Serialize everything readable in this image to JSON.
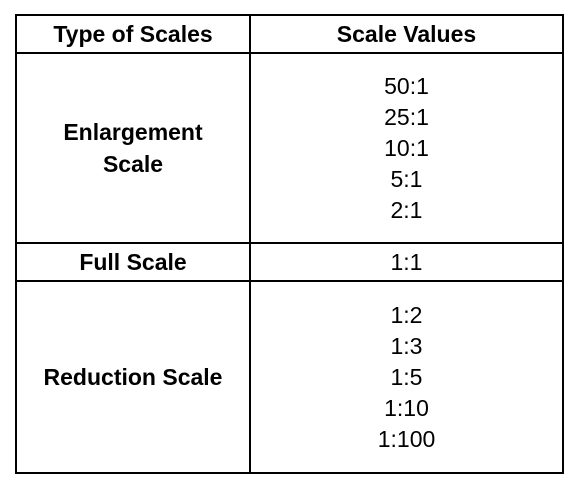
{
  "table": {
    "headers": {
      "type": "Type of Scales",
      "values": "Scale Values"
    },
    "rows": [
      {
        "type_lines": [
          "Enlargement",
          "Scale"
        ],
        "values": [
          "50:1",
          "25:1",
          "10:1",
          "5:1",
          "2:1"
        ]
      },
      {
        "type_lines": [
          "Full Scale"
        ],
        "values": [
          "1:1"
        ]
      },
      {
        "type_lines": [
          "Reduction Scale"
        ],
        "values": [
          "1:2",
          "1:3",
          "1:5",
          "1:10",
          "1:100"
        ]
      }
    ]
  }
}
